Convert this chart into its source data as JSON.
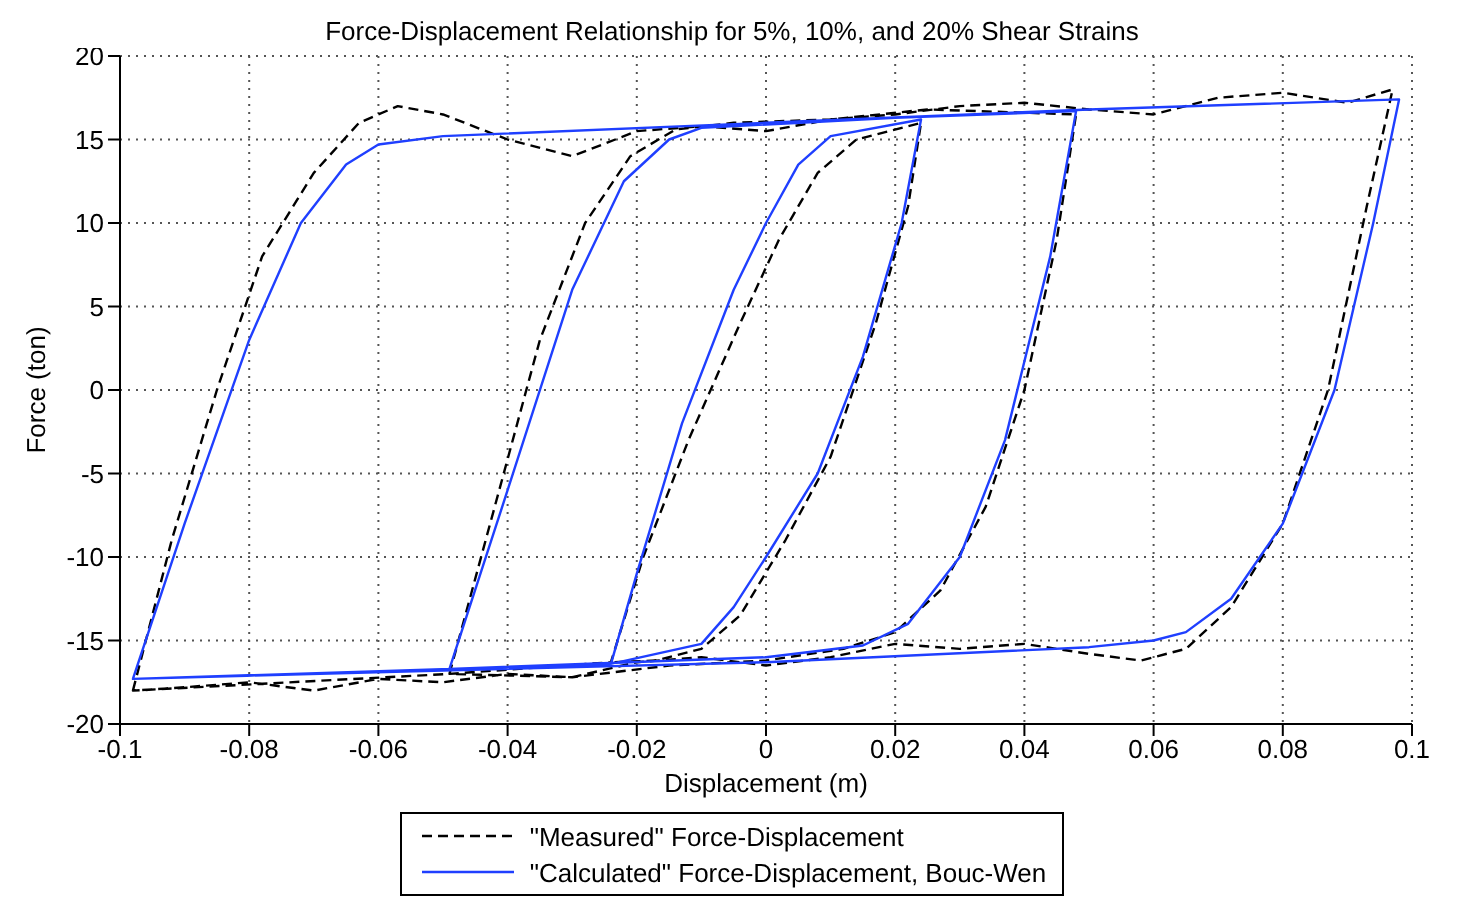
{
  "chart_data": {
    "type": "line",
    "title": "Force-Displacement Relationship for 5%, 10%, and 20% Shear Strains",
    "xlabel": "Displacement (m)",
    "ylabel": "Force (ton)",
    "xlim": [
      -0.1,
      0.1
    ],
    "xticks": [
      {
        "value": -0.1,
        "label": "-0.1"
      },
      -0.08,
      -0.06,
      -0.04,
      -0.02,
      0,
      0.02,
      0.04,
      0.06,
      0.08,
      {
        "value": 0.1,
        "label": "0.1"
      }
    ],
    "ylim": [
      -20,
      20
    ],
    "yticks": [
      -20,
      -15,
      -10,
      -5,
      0,
      5,
      10,
      15,
      20
    ],
    "grid": true,
    "legend": "bottom",
    "marker": "none",
    "series": [
      {
        "name": "\"Measured\" Force-Displacement",
        "color": "#000000",
        "line_style": "dashed",
        "x": [
          -0.098,
          -0.092,
          -0.085,
          -0.078,
          -0.07,
          -0.063,
          -0.057,
          -0.05,
          -0.04,
          -0.03,
          -0.02,
          -0.01,
          0,
          0.01,
          0.02,
          0.03,
          0.04,
          0.05,
          0.06,
          0.07,
          0.08,
          0.09,
          0.097,
          0.093,
          0.087,
          0.08,
          0.072,
          0.065,
          0.058,
          0.05,
          0.04,
          0.03,
          0.02,
          0.01,
          0,
          -0.01,
          -0.02,
          -0.03,
          -0.04,
          -0.05,
          -0.06,
          -0.07,
          -0.08,
          -0.09,
          -0.098,
          -0.049,
          -0.042,
          -0.035,
          -0.028,
          -0.021,
          -0.014,
          -0.005,
          0.01,
          0.025,
          0.048,
          0.045,
          0.04,
          0.034,
          0.027,
          0.02,
          0.012,
          0.0,
          -0.015,
          -0.03,
          -0.049,
          -0.024,
          -0.019,
          -0.012,
          -0.004,
          0.002,
          0.008,
          0.014,
          0.024,
          0.022,
          0.017,
          0.01,
          0.003,
          -0.004,
          -0.01,
          -0.017,
          -0.024
        ],
        "values": [
          -18,
          -9,
          0,
          8,
          13,
          16,
          17,
          16.5,
          15,
          14,
          15.5,
          15.8,
          15.5,
          16.2,
          16.5,
          17,
          17.2,
          16.8,
          16.5,
          17.5,
          17.8,
          17.2,
          18,
          11,
          0,
          -8,
          -13,
          -15.5,
          -16.2,
          -15.8,
          -15.2,
          -15.5,
          -15.2,
          -16,
          -16.5,
          -16,
          -16.3,
          -17.2,
          -17,
          -17.5,
          -17.3,
          -18,
          -17.5,
          -17.8,
          -18,
          -17,
          -7,
          3,
          10,
          14,
          15.6,
          16,
          16.2,
          16.8,
          16.5,
          9,
          0,
          -7,
          -12,
          -14.5,
          -15.5,
          -16.2,
          -16.5,
          -17.2,
          -17,
          -16.3,
          -10,
          -3,
          4,
          9,
          13,
          15,
          16,
          11,
          4,
          -4,
          -9,
          -13.5,
          -15.5,
          -16.2,
          -16.3
        ]
      },
      {
        "name": "\"Calculated\" Force-Displacement, Bouc-Wen",
        "color": "#1f3fff",
        "line_style": "solid",
        "x": [
          -0.098,
          -0.09,
          -0.08,
          -0.072,
          -0.065,
          -0.06,
          -0.05,
          0,
          0.05,
          0.098,
          0.094,
          0.088,
          0.08,
          0.072,
          0.065,
          0.06,
          0.05,
          0,
          -0.05,
          -0.098,
          -0.049,
          -0.04,
          -0.03,
          -0.022,
          -0.015,
          -0.01,
          0.02,
          0.048,
          0.044,
          0.037,
          0.03,
          0.022,
          0.015,
          0,
          -0.049,
          -0.024,
          -0.02,
          -0.013,
          -0.005,
          0,
          0.005,
          0.01,
          0.024,
          0.021,
          0.015,
          0.008,
          0,
          -0.005,
          -0.01,
          -0.024
        ],
        "values": [
          -17.3,
          -8,
          3,
          10,
          13.5,
          14.7,
          15.2,
          16,
          16.8,
          17.4,
          10,
          0,
          -8,
          -12.5,
          -14.5,
          -15,
          -15.4,
          -16.3,
          -16.8,
          -17.3,
          -16.7,
          -6,
          6,
          12.5,
          15,
          15.7,
          16.3,
          16.7,
          8,
          -3,
          -10,
          -14,
          -15.3,
          -16,
          -16.7,
          -16.4,
          -11,
          -2,
          6,
          10,
          13.5,
          15.2,
          16.2,
          10,
          2,
          -5,
          -10,
          -13,
          -15.2,
          -16.4
        ]
      }
    ]
  }
}
